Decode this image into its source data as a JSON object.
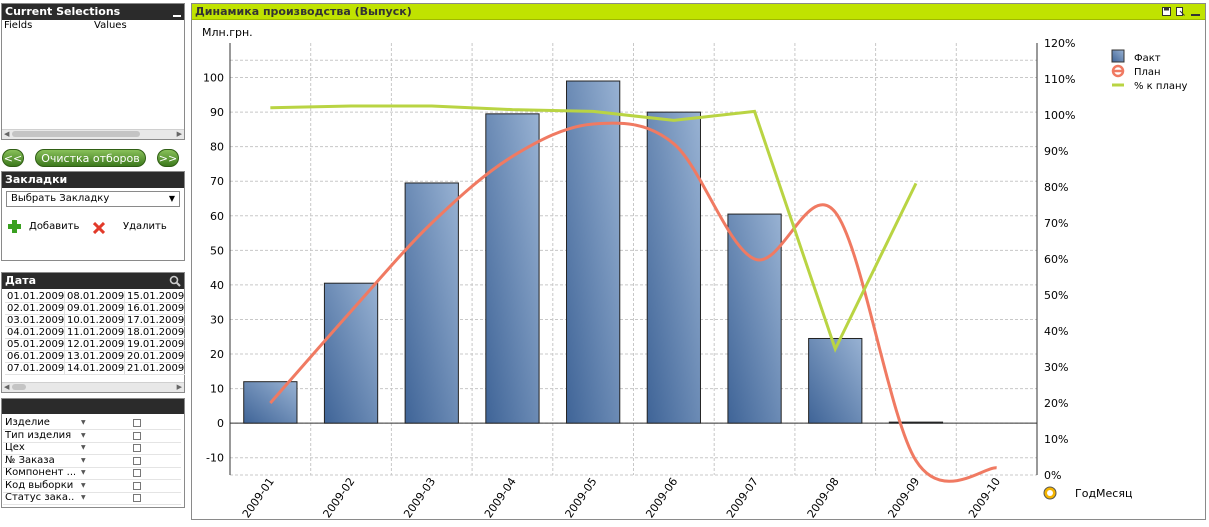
{
  "current_selections": {
    "title": "Current Selections",
    "col_fields": "Fields",
    "col_values": "Values"
  },
  "nav": {
    "prev": "<<",
    "clear": "Очистка отборов",
    "next": ">>"
  },
  "bookmarks": {
    "title": "Закладки",
    "select_value": "Выбрать Закладку",
    "add_label": "Добавить",
    "delete_label": "Удалить"
  },
  "dates": {
    "title": "Дата",
    "columns": [
      [
        "01.01.2009",
        "02.01.2009",
        "03.01.2009",
        "04.01.2009",
        "05.01.2009",
        "06.01.2009",
        "07.01.2009"
      ],
      [
        "08.01.2009",
        "09.01.2009",
        "10.01.2009",
        "11.01.2009",
        "12.01.2009",
        "13.01.2009",
        "14.01.2009"
      ],
      [
        "15.01.2009",
        "16.01.2009",
        "17.01.2009",
        "18.01.2009",
        "19.01.2009",
        "20.01.2009",
        "21.01.2009"
      ]
    ]
  },
  "params": {
    "items": [
      "Изделие",
      "Тип изделия",
      "Цех",
      "№ Заказа",
      "Компонент ...",
      "Код выборки",
      "Статус зака..."
    ]
  },
  "chart_data": {
    "type": "bar",
    "title": "Динамика производства (Выпуск)",
    "ylabel": "Млн.грн.",
    "xlabel": "ГодМесяц",
    "ylim": [
      -15,
      110
    ],
    "y2lim": [
      0,
      120
    ],
    "y_ticks": [
      -10,
      0,
      10,
      20,
      30,
      40,
      50,
      60,
      70,
      80,
      90,
      100
    ],
    "y2_ticks": [
      "0%",
      "10%",
      "20%",
      "30%",
      "40%",
      "50%",
      "60%",
      "70%",
      "80%",
      "90%",
      "100%",
      "110%",
      "120%"
    ],
    "categories": [
      "2009-01",
      "2009-02",
      "2009-03",
      "2009-04",
      "2009-05",
      "2009-06",
      "2009-07",
      "2009-08",
      "2009-09",
      "2009-10"
    ],
    "series": [
      {
        "name": "Факт",
        "kind": "bar",
        "values": [
          12,
          40.5,
          69.5,
          89.5,
          99,
          90,
          60.5,
          24.5,
          0.3,
          null
        ]
      },
      {
        "name": "План",
        "kind": "line",
        "values": [
          20,
          45.5,
          70,
          88.5,
          97.5,
          92,
          60,
          73,
          4,
          2
        ]
      },
      {
        "name": "% к плану",
        "kind": "line",
        "axis": "right",
        "values": [
          102,
          102.5,
          102.5,
          101.5,
          101,
          98.5,
          101,
          35,
          81,
          null
        ]
      }
    ],
    "colors": {
      "bar": "#6d8db8",
      "plan": "#f07a62",
      "pct": "#b9d443"
    },
    "legend_position": "top-right",
    "grid": true
  }
}
